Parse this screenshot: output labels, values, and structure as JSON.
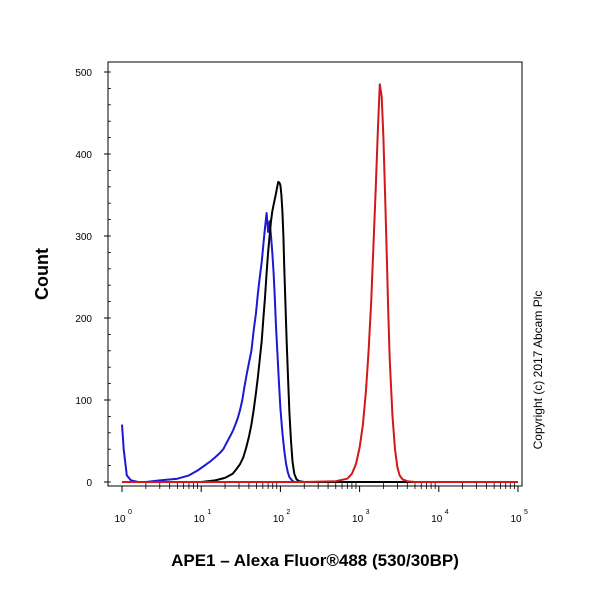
{
  "chart_data": {
    "type": "line",
    "xlabel": "APE1 – Alexa Fluor®488 (530/30BP)",
    "ylabel": "Count",
    "x_scale": "log",
    "xlim": [
      1,
      100000
    ],
    "ylim": [
      0,
      510
    ],
    "x_tick_base": "10",
    "x_ticks": [
      {
        "value": 1,
        "exp": "0"
      },
      {
        "value": 10,
        "exp": "1"
      },
      {
        "value": 100,
        "exp": "2"
      },
      {
        "value": 1000,
        "exp": "3"
      },
      {
        "value": 10000,
        "exp": "4"
      },
      {
        "value": 100000,
        "exp": "5"
      }
    ],
    "y_ticks": [
      {
        "value": 0,
        "label": "0"
      },
      {
        "value": 100,
        "label": "100"
      },
      {
        "value": 200,
        "label": "200"
      },
      {
        "value": 300,
        "label": "300"
      },
      {
        "value": 400,
        "label": "400"
      },
      {
        "value": 500,
        "label": "500"
      }
    ],
    "grid": false,
    "annotation": "Copyright (c) 2017 Abcam Plc",
    "series": [
      {
        "color": "#1a1ad0",
        "x": [
          1.0,
          1.05,
          1.15,
          1.3,
          1.6,
          2,
          3,
          5,
          7,
          9,
          11,
          13,
          15,
          17,
          19,
          21,
          23,
          25,
          27,
          29,
          31,
          33,
          35,
          37,
          40,
          43,
          46,
          49,
          52,
          55,
          58,
          61,
          64,
          67,
          70,
          73,
          76,
          79,
          82,
          85,
          88,
          92,
          96,
          100,
          106,
          112,
          118,
          124,
          130,
          140,
          150,
          170,
          200,
          300,
          1000,
          100000
        ],
        "y": [
          70,
          40,
          8,
          2,
          0,
          0,
          2,
          4,
          8,
          14,
          20,
          25,
          30,
          35,
          40,
          48,
          55,
          62,
          70,
          78,
          88,
          100,
          115,
          128,
          145,
          160,
          185,
          205,
          230,
          250,
          268,
          290,
          310,
          328,
          305,
          318,
          300,
          280,
          255,
          225,
          190,
          155,
          120,
          90,
          60,
          38,
          22,
          12,
          6,
          2,
          0,
          0,
          0,
          0,
          0,
          0
        ]
      },
      {
        "color": "#000000",
        "x": [
          1,
          5,
          10,
          15,
          20,
          25,
          28,
          31,
          34,
          37,
          40,
          43,
          46,
          49,
          52,
          55,
          58,
          61,
          64,
          67,
          70,
          73,
          76,
          79,
          82,
          85,
          88,
          91,
          94,
          97,
          100,
          103,
          106,
          109,
          112,
          116,
          120,
          125,
          130,
          136,
          142,
          150,
          160,
          175,
          200,
          300,
          100000
        ],
        "y": [
          0,
          0,
          0,
          2,
          5,
          10,
          16,
          22,
          30,
          42,
          55,
          70,
          88,
          108,
          128,
          150,
          172,
          200,
          225,
          255,
          280,
          300,
          318,
          330,
          338,
          345,
          352,
          360,
          366,
          365,
          362,
          350,
          330,
          300,
          260,
          215,
          170,
          125,
          85,
          50,
          25,
          10,
          3,
          1,
          0,
          0,
          0
        ]
      },
      {
        "color": "#d01818",
        "x": [
          1,
          200,
          500,
          700,
          800,
          900,
          1000,
          1100,
          1200,
          1300,
          1400,
          1500,
          1600,
          1700,
          1800,
          1900,
          2000,
          2100,
          2200,
          2300,
          2400,
          2600,
          2800,
          3000,
          3200,
          3500,
          4000,
          5000,
          7000,
          100000
        ],
        "y": [
          0,
          0,
          1,
          4,
          10,
          22,
          42,
          70,
          110,
          160,
          220,
          290,
          360,
          430,
          485,
          470,
          420,
          350,
          280,
          210,
          150,
          80,
          40,
          18,
          8,
          3,
          1,
          0,
          0,
          0
        ]
      }
    ]
  }
}
